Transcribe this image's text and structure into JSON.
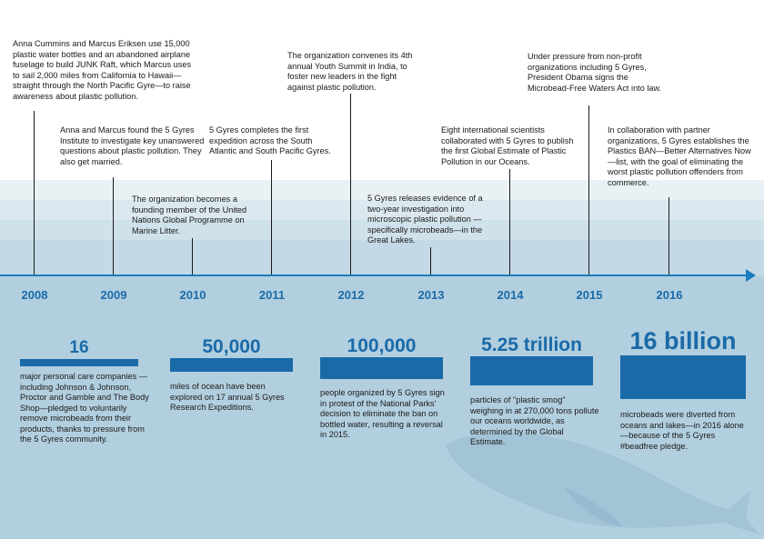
{
  "timeline": {
    "years": [
      "2008",
      "2009",
      "2010",
      "2011",
      "2012",
      "2013",
      "2014",
      "2015",
      "2016"
    ],
    "events": [
      {
        "text": "Anna Cummins and Marcus Eriksen use 15,000 plastic water bottles and an abandoned airplane fuselage to build JUNK Raft, which Marcus uses to sail 2,000 miles from California to Hawaii—straight through the North Pacific Gyre—to raise awareness about plastic pollution."
      },
      {
        "text": "Anna and Marcus found the 5 Gyres Institute to investigate key unanswered questions about plastic pollution. They also get married."
      },
      {
        "text": "The organization becomes a founding member of the United Nations Global Programme on Marine Litter."
      },
      {
        "text": "5 Gyres completes the first expedition across the South Atlantic and South Pacific Gyres."
      },
      {
        "text": "The organization convenes its 4th annual Youth Summit in India, to foster new leaders in the fight against plastic pollution."
      },
      {
        "text": "5 Gyres releases evidence of a two-year investigation into microscopic plastic pollution —specifically microbeads—in the Great Lakes."
      },
      {
        "text": "Eight international scientists collaborated with 5 Gyres to publish the first Global Estimate of Plastic Pollution in our Oceans."
      },
      {
        "text": "Under pressure from non-profit organizations including 5 Gyres, President Obama signs the Microbead-Free Waters Act into law."
      },
      {
        "text": "In collaboration with partner organizations, 5 Gyres establishes the Plastics BAN—Better Alternatives Now—list, with the goal of eliminating the worst plastic pollution offenders from commerce."
      }
    ]
  },
  "stats": [
    {
      "value": "16",
      "desc": "major personal care companies —including Johnson & Johnson, Proctor and Gamble and The Body Shop—pledged to voluntarily remove microbeads from their products, thanks to pressure from the 5 Gyres community."
    },
    {
      "value": "50,000",
      "desc": "miles of ocean have been explored on 17 annual 5 Gyres Research Expeditions."
    },
    {
      "value": "100,000",
      "desc": "people organized by 5 Gyres sign in protest of the National Parks' decision to eliminate the ban on bottled water, resulting a reversal in 2015."
    },
    {
      "value": "5.25 trillion",
      "desc": "particles of \"plastic smog\" weighing in at 270,000 tons pollute our oceans worldwide, as determined by the Global Estimate."
    },
    {
      "value": "16 billion",
      "desc": "microbeads were diverted from oceans and lakes—in 2016 alone—because of the 5 Gyres #beadfree pledge."
    }
  ],
  "colors": {
    "accent": "#1a6aa8",
    "axis": "#1a7bbf",
    "water": "#b2cfdf"
  },
  "icons": {
    "decoration": "whale-illustration"
  }
}
